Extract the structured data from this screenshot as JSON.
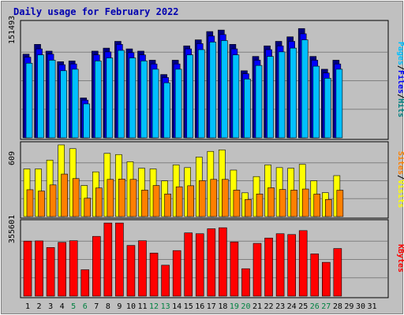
{
  "chart_data": {
    "type": "bar",
    "title": "Daily usage for February 2022",
    "x": {
      "labels": [
        "1",
        "2",
        "3",
        "4",
        "5",
        "6",
        "7",
        "8",
        "9",
        "10",
        "11",
        "12",
        "13",
        "14",
        "15",
        "16",
        "17",
        "18",
        "19",
        "20",
        "21",
        "22",
        "23",
        "24",
        "25",
        "26",
        "27",
        "28",
        "29",
        "30",
        "31"
      ],
      "weekend_days": [
        5,
        6,
        12,
        13,
        19,
        20,
        26,
        27
      ]
    },
    "panels": [
      {
        "id": "hits-files-pages",
        "ymax_label": "151493",
        "ymax": 151493,
        "legend": [
          "Pages",
          "/",
          "Files",
          "/",
          "Hits"
        ],
        "series": [
          {
            "name": "Hits",
            "color": "#000080",
            "values": [
              111000,
              124000,
              115000,
              101000,
              102000,
              53000,
              115000,
              119000,
              128000,
              118000,
              115000,
              103000,
              84000,
              103000,
              122000,
              130000,
              141000,
              143000,
              124000,
              89000,
              108000,
              122000,
              128000,
              134000,
              145000,
              108000,
              91000,
              103000,
              null,
              null,
              null
            ]
          },
          {
            "name": "Files",
            "color": "#0000ff",
            "values": [
              107000,
              118000,
              111000,
              97000,
              98000,
              50000,
              110000,
              114000,
              124000,
              113000,
              110000,
              98000,
              80000,
              98000,
              118000,
              125000,
              135000,
              137000,
              118000,
              85000,
              103000,
              117000,
              122000,
              128000,
              138000,
              103000,
              86000,
              98000,
              null,
              null,
              null
            ]
          },
          {
            "name": "Pages",
            "color": "#00c0ff",
            "values": [
              99000,
              110000,
              103000,
              89000,
              91000,
              45000,
              102000,
              106000,
              116000,
              106000,
              102000,
              91000,
              73000,
              91000,
              110000,
              117000,
              127000,
              129000,
              110000,
              78000,
              96000,
              108000,
              114000,
              119000,
              130000,
              95000,
              79000,
              91000,
              null,
              null,
              null
            ]
          }
        ]
      },
      {
        "id": "visits-sites",
        "ymax_label": "609",
        "ymax": 609,
        "legend": [
          "Sites",
          "/",
          "Visits"
        ],
        "series": [
          {
            "name": "Visits",
            "color": "#ffff00",
            "values": [
              405,
              405,
              480,
              609,
              577,
              264,
              380,
              537,
              527,
              466,
              411,
              405,
              303,
              439,
              416,
              506,
              554,
              567,
              395,
              202,
              340,
              439,
              416,
              411,
              444,
              304,
              203,
              348,
              null,
              null,
              null
            ]
          },
          {
            "name": "Sites",
            "color": "#ff8000",
            "values": [
              228,
              217,
              269,
              361,
              323,
              156,
              243,
              316,
              319,
              316,
              225,
              264,
              192,
              253,
              262,
              305,
              316,
              316,
              225,
              145,
              192,
              245,
              230,
              225,
              234,
              191,
              145,
              224,
              null,
              null,
              null
            ]
          }
        ]
      },
      {
        "id": "kbytes",
        "ymax_label": "355601",
        "ymax": 355601,
        "legend": [
          "KBytes"
        ],
        "series": [
          {
            "name": "KBytes",
            "color": "#ff0000",
            "values": [
              267000,
              268000,
              236000,
              261000,
              269000,
              128000,
              290000,
              355000,
              355000,
              246000,
              269000,
              209000,
              150000,
              221000,
              307000,
              303000,
              327000,
              332000,
              263000,
              133000,
              256000,
              282000,
              303000,
              299000,
              318000,
              205000,
              164000,
              231000,
              null,
              null,
              null
            ]
          }
        ]
      }
    ],
    "colors": {
      "title": "#0000b0",
      "weekday_label": "#000000",
      "weekend_label": "#008040",
      "grid": "#808080"
    }
  }
}
